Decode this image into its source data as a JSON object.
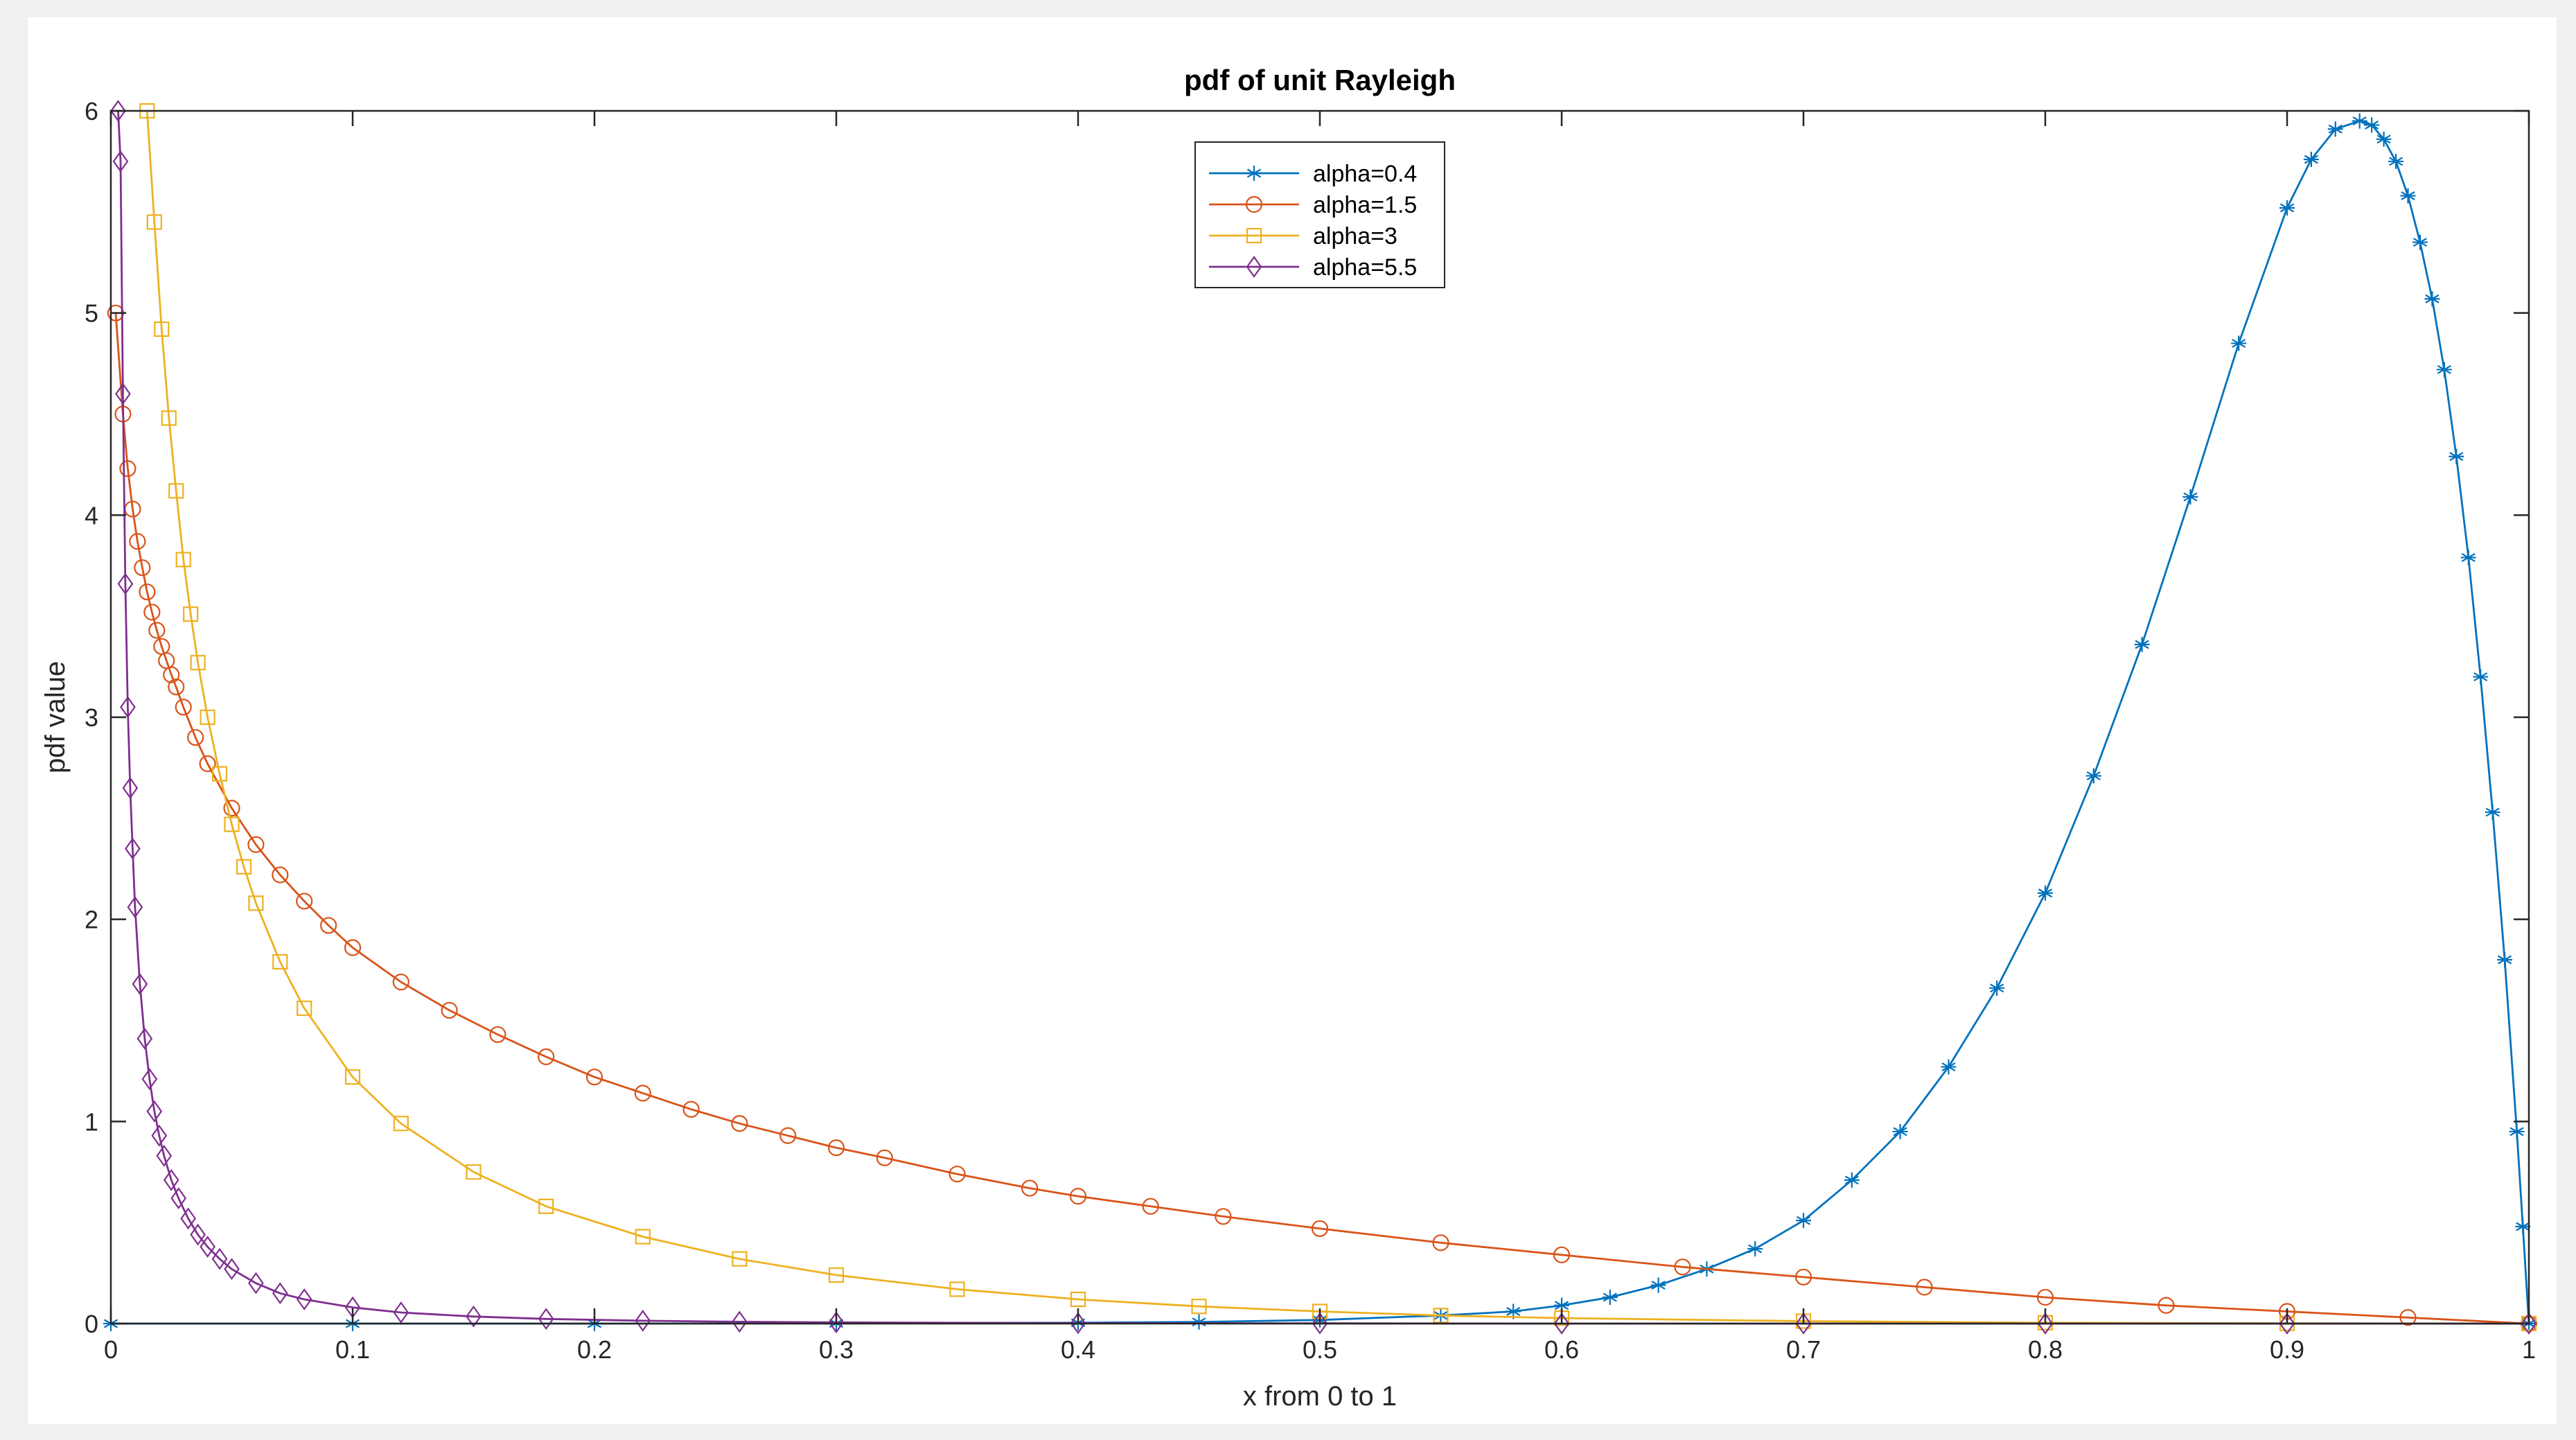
{
  "chart_data": {
    "type": "line",
    "title": "pdf of unit Rayleigh",
    "xlabel": "x from 0 to 1",
    "ylabel": "pdf value",
    "xlim": [
      0,
      1
    ],
    "ylim": [
      0,
      6
    ],
    "xticks": [
      "0",
      "0.1",
      "0.2",
      "0.3",
      "0.4",
      "0.5",
      "0.6",
      "0.7",
      "0.8",
      "0.9",
      "1"
    ],
    "yticks": [
      "0",
      "1",
      "2",
      "3",
      "4",
      "5",
      "6"
    ],
    "grid": false,
    "legend_position": "top-center",
    "series": [
      {
        "name": "alpha=0.4",
        "color": "#0072bd",
        "marker": "asterisk",
        "x": [
          0.0,
          0.1,
          0.2,
          0.3,
          0.4,
          0.45,
          0.5,
          0.55,
          0.58,
          0.6,
          0.62,
          0.64,
          0.66,
          0.68,
          0.7,
          0.72,
          0.74,
          0.76,
          0.78,
          0.8,
          0.82,
          0.84,
          0.86,
          0.88,
          0.9,
          0.91,
          0.92,
          0.93,
          0.935,
          0.94,
          0.945,
          0.95,
          0.955,
          0.96,
          0.965,
          0.97,
          0.975,
          0.98,
          0.985,
          0.99,
          0.995,
          0.9975,
          1.0
        ],
        "y": [
          0.0,
          0.0,
          0.0,
          0.001,
          0.004,
          0.008,
          0.018,
          0.04,
          0.06,
          0.09,
          0.13,
          0.19,
          0.27,
          0.37,
          0.51,
          0.71,
          0.95,
          1.27,
          1.66,
          2.13,
          2.71,
          3.36,
          4.09,
          4.85,
          5.52,
          5.76,
          5.91,
          5.95,
          5.93,
          5.86,
          5.75,
          5.58,
          5.35,
          5.07,
          4.72,
          4.29,
          3.79,
          3.2,
          2.53,
          1.8,
          0.95,
          0.48,
          0.0
        ]
      },
      {
        "name": "alpha=1.5",
        "color": "#d95319",
        "marker": "circle",
        "x": [
          0.002,
          0.005,
          0.007,
          0.009,
          0.011,
          0.013,
          0.015,
          0.017,
          0.019,
          0.021,
          0.023,
          0.025,
          0.027,
          0.03,
          0.035,
          0.04,
          0.05,
          0.06,
          0.07,
          0.08,
          0.09,
          0.1,
          0.12,
          0.14,
          0.16,
          0.18,
          0.2,
          0.22,
          0.24,
          0.26,
          0.28,
          0.3,
          0.32,
          0.35,
          0.38,
          0.4,
          0.43,
          0.46,
          0.5,
          0.55,
          0.6,
          0.65,
          0.7,
          0.75,
          0.8,
          0.85,
          0.9,
          0.95,
          1.0
        ],
        "y": [
          5.0,
          4.5,
          4.23,
          4.03,
          3.87,
          3.74,
          3.62,
          3.52,
          3.43,
          3.35,
          3.28,
          3.21,
          3.15,
          3.05,
          2.9,
          2.77,
          2.55,
          2.37,
          2.22,
          2.09,
          1.97,
          1.86,
          1.69,
          1.55,
          1.43,
          1.32,
          1.22,
          1.14,
          1.06,
          0.99,
          0.93,
          0.87,
          0.82,
          0.74,
          0.67,
          0.63,
          0.58,
          0.53,
          0.47,
          0.4,
          0.34,
          0.28,
          0.23,
          0.18,
          0.13,
          0.09,
          0.06,
          0.03,
          0.0
        ]
      },
      {
        "name": "alpha=3",
        "color": "#edb120",
        "marker": "square",
        "x": [
          0.015,
          0.018,
          0.021,
          0.024,
          0.027,
          0.03,
          0.033,
          0.036,
          0.04,
          0.045,
          0.05,
          0.055,
          0.06,
          0.07,
          0.08,
          0.1,
          0.12,
          0.15,
          0.18,
          0.22,
          0.26,
          0.3,
          0.35,
          0.4,
          0.45,
          0.5,
          0.55,
          0.6,
          0.7,
          0.8,
          0.9,
          1.0
        ],
        "y": [
          6.0,
          5.45,
          4.92,
          4.48,
          4.12,
          3.78,
          3.51,
          3.27,
          3.0,
          2.72,
          2.47,
          2.26,
          2.08,
          1.79,
          1.56,
          1.22,
          0.99,
          0.75,
          0.58,
          0.43,
          0.32,
          0.24,
          0.17,
          0.12,
          0.085,
          0.06,
          0.04,
          0.027,
          0.012,
          0.004,
          0.001,
          0.0
        ]
      },
      {
        "name": "alpha=5.5",
        "color": "#7e2f8e",
        "marker": "diamond",
        "x": [
          0.003,
          0.004,
          0.005,
          0.006,
          0.007,
          0.008,
          0.009,
          0.01,
          0.012,
          0.014,
          0.016,
          0.018,
          0.02,
          0.022,
          0.025,
          0.028,
          0.032,
          0.036,
          0.04,
          0.045,
          0.05,
          0.06,
          0.07,
          0.08,
          0.1,
          0.12,
          0.15,
          0.18,
          0.22,
          0.26,
          0.3,
          0.4,
          0.5,
          0.6,
          0.7,
          0.8,
          0.9,
          1.0
        ],
        "y": [
          6.0,
          5.75,
          4.6,
          3.66,
          3.05,
          2.65,
          2.35,
          2.06,
          1.68,
          1.41,
          1.21,
          1.05,
          0.93,
          0.83,
          0.71,
          0.62,
          0.52,
          0.44,
          0.38,
          0.32,
          0.27,
          0.2,
          0.15,
          0.12,
          0.08,
          0.055,
          0.035,
          0.023,
          0.014,
          0.009,
          0.006,
          0.002,
          0.001,
          0.0,
          0.0,
          0.0,
          0.0,
          0.0
        ]
      }
    ]
  }
}
